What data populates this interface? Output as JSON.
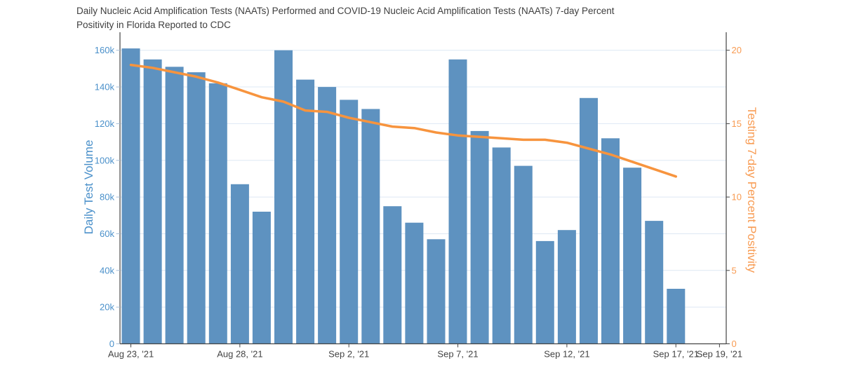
{
  "title": {
    "line1": "Daily Nucleic Acid Amplification Tests (NAATs) Performed and COVID-19 Nucleic Acid Amplification Tests (NAATs) 7-day Percent",
    "line2": "Positivity in Florida Reported to CDC"
  },
  "chart_data": {
    "type": "bar",
    "subtype": "dual-axis bar+line combo",
    "background": "#FFFFFF",
    "axis_line_color": "#444444",
    "grid": {
      "on": true,
      "color": "#DEE8F4"
    },
    "categories": [
      "Aug 23, '21",
      "Aug 24, '21",
      "Aug 25, '21",
      "Aug 26, '21",
      "Aug 27, '21",
      "Aug 28, '21",
      "Aug 29, '21",
      "Aug 30, '21",
      "Aug 31, '21",
      "Sep 1, '21",
      "Sep 2, '21",
      "Sep 3, '21",
      "Sep 4, '21",
      "Sep 5, '21",
      "Sep 6, '21",
      "Sep 7, '21",
      "Sep 8, '21",
      "Sep 9, '21",
      "Sep 10, '21",
      "Sep 11, '21",
      "Sep 12, '21",
      "Sep 13, '21",
      "Sep 14, '21",
      "Sep 15, '21",
      "Sep 16, '21",
      "Sep 17, '21"
    ],
    "series": [
      {
        "name": "Daily Test Volume",
        "type": "bar",
        "axis": "left",
        "color": "#5E92C0",
        "values": [
          161000,
          155000,
          151000,
          148000,
          142000,
          87000,
          72000,
          160000,
          144000,
          140000,
          133000,
          128000,
          75000,
          66000,
          57000,
          155000,
          116000,
          107000,
          97000,
          56000,
          62000,
          134000,
          112000,
          96000,
          67000,
          30000
        ]
      },
      {
        "name": "Testing 7-day Percent Positivity",
        "type": "line",
        "axis": "right",
        "color": "#F7943E",
        "values": [
          19.0,
          18.8,
          18.5,
          18.2,
          17.8,
          17.3,
          16.8,
          16.5,
          15.9,
          15.8,
          15.4,
          15.1,
          14.8,
          14.7,
          14.4,
          14.2,
          14.1,
          14.0,
          13.9,
          13.9,
          13.7,
          13.3,
          12.9,
          12.4,
          11.9,
          11.4
        ]
      }
    ],
    "left_axis": {
      "title": "Daily Test Volume",
      "color": "#4A90CA",
      "tick_color": "#A7BFD9",
      "max": 160000,
      "range": [
        0,
        170000
      ],
      "ticks": [
        {
          "v": 0,
          "label": "0"
        },
        {
          "v": 20000,
          "label": "20k"
        },
        {
          "v": 40000,
          "label": "40k"
        },
        {
          "v": 60000,
          "label": "60k"
        },
        {
          "v": 80000,
          "label": "80k"
        },
        {
          "v": 100000,
          "label": "100k"
        },
        {
          "v": 120000,
          "label": "120k"
        },
        {
          "v": 140000,
          "label": "140k"
        },
        {
          "v": 160000,
          "label": "160k"
        }
      ]
    },
    "right_axis": {
      "title": "Testing 7-day Percent Positivity",
      "color": "#F89B52",
      "tick_color": "#444444",
      "max": 20,
      "range": [
        0,
        21.2
      ],
      "ticks": [
        {
          "v": 0,
          "label": "0"
        },
        {
          "v": 5,
          "label": "5"
        },
        {
          "v": 10,
          "label": "10"
        },
        {
          "v": 15,
          "label": "15"
        },
        {
          "v": 20,
          "label": "20"
        }
      ]
    },
    "x_axis": {
      "color": "#444444",
      "ticks": [
        {
          "i": 0,
          "label": "Aug 23, '21"
        },
        {
          "i": 5,
          "label": "Aug 28, '21"
        },
        {
          "i": 10,
          "label": "Sep 2, '21"
        },
        {
          "i": 15,
          "label": "Sep 7, '21"
        },
        {
          "i": 20,
          "label": "Sep 12, '21"
        },
        {
          "i": 25,
          "label": "Sep 17, '21"
        },
        {
          "i": 27,
          "label": "Sep 19, '21"
        }
      ]
    },
    "legend": {
      "visible": false
    }
  }
}
